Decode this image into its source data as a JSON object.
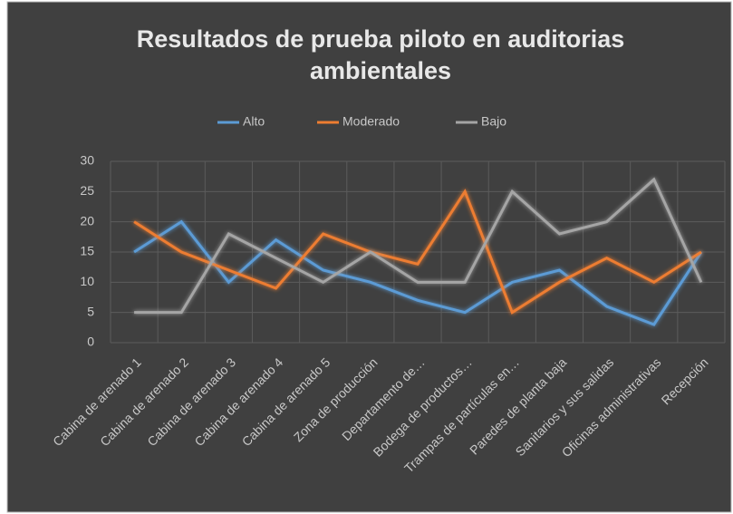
{
  "chart_data": {
    "type": "line",
    "title": "Resultados de prueba piloto en auditorias ambientales",
    "categories": [
      "Cabina de arenado 1",
      "Cabina de arenado 2",
      "Cabina de arenado 3",
      "Cabina de arenado 4",
      "Cabina de arenado 5",
      "Zona de producción",
      "Departamento de…",
      "Bodega  de productos…",
      "Trampas de partículas en…",
      "Paredes de planta baja",
      "Sanitarios y sus salidas",
      "Oficinas administrativas",
      "Recepción"
    ],
    "series": [
      {
        "name": "Alto",
        "color": "#5b9bd5",
        "values": [
          15,
          20,
          10,
          17,
          12,
          10,
          7,
          5,
          10,
          12,
          6,
          3,
          15
        ]
      },
      {
        "name": "Moderado",
        "color": "#ed7d31",
        "values": [
          20,
          15,
          12,
          9,
          18,
          15,
          13,
          25,
          5,
          10,
          14,
          10,
          15
        ]
      },
      {
        "name": "Bajo",
        "color": "#a5a5a5",
        "values": [
          5,
          5,
          18,
          14,
          10,
          15,
          10,
          10,
          25,
          18,
          20,
          27,
          10
        ]
      }
    ],
    "ylim": [
      0,
      30
    ],
    "yticks": [
      0,
      5,
      10,
      15,
      20,
      25,
      30
    ],
    "grid": true,
    "legend": "top"
  }
}
